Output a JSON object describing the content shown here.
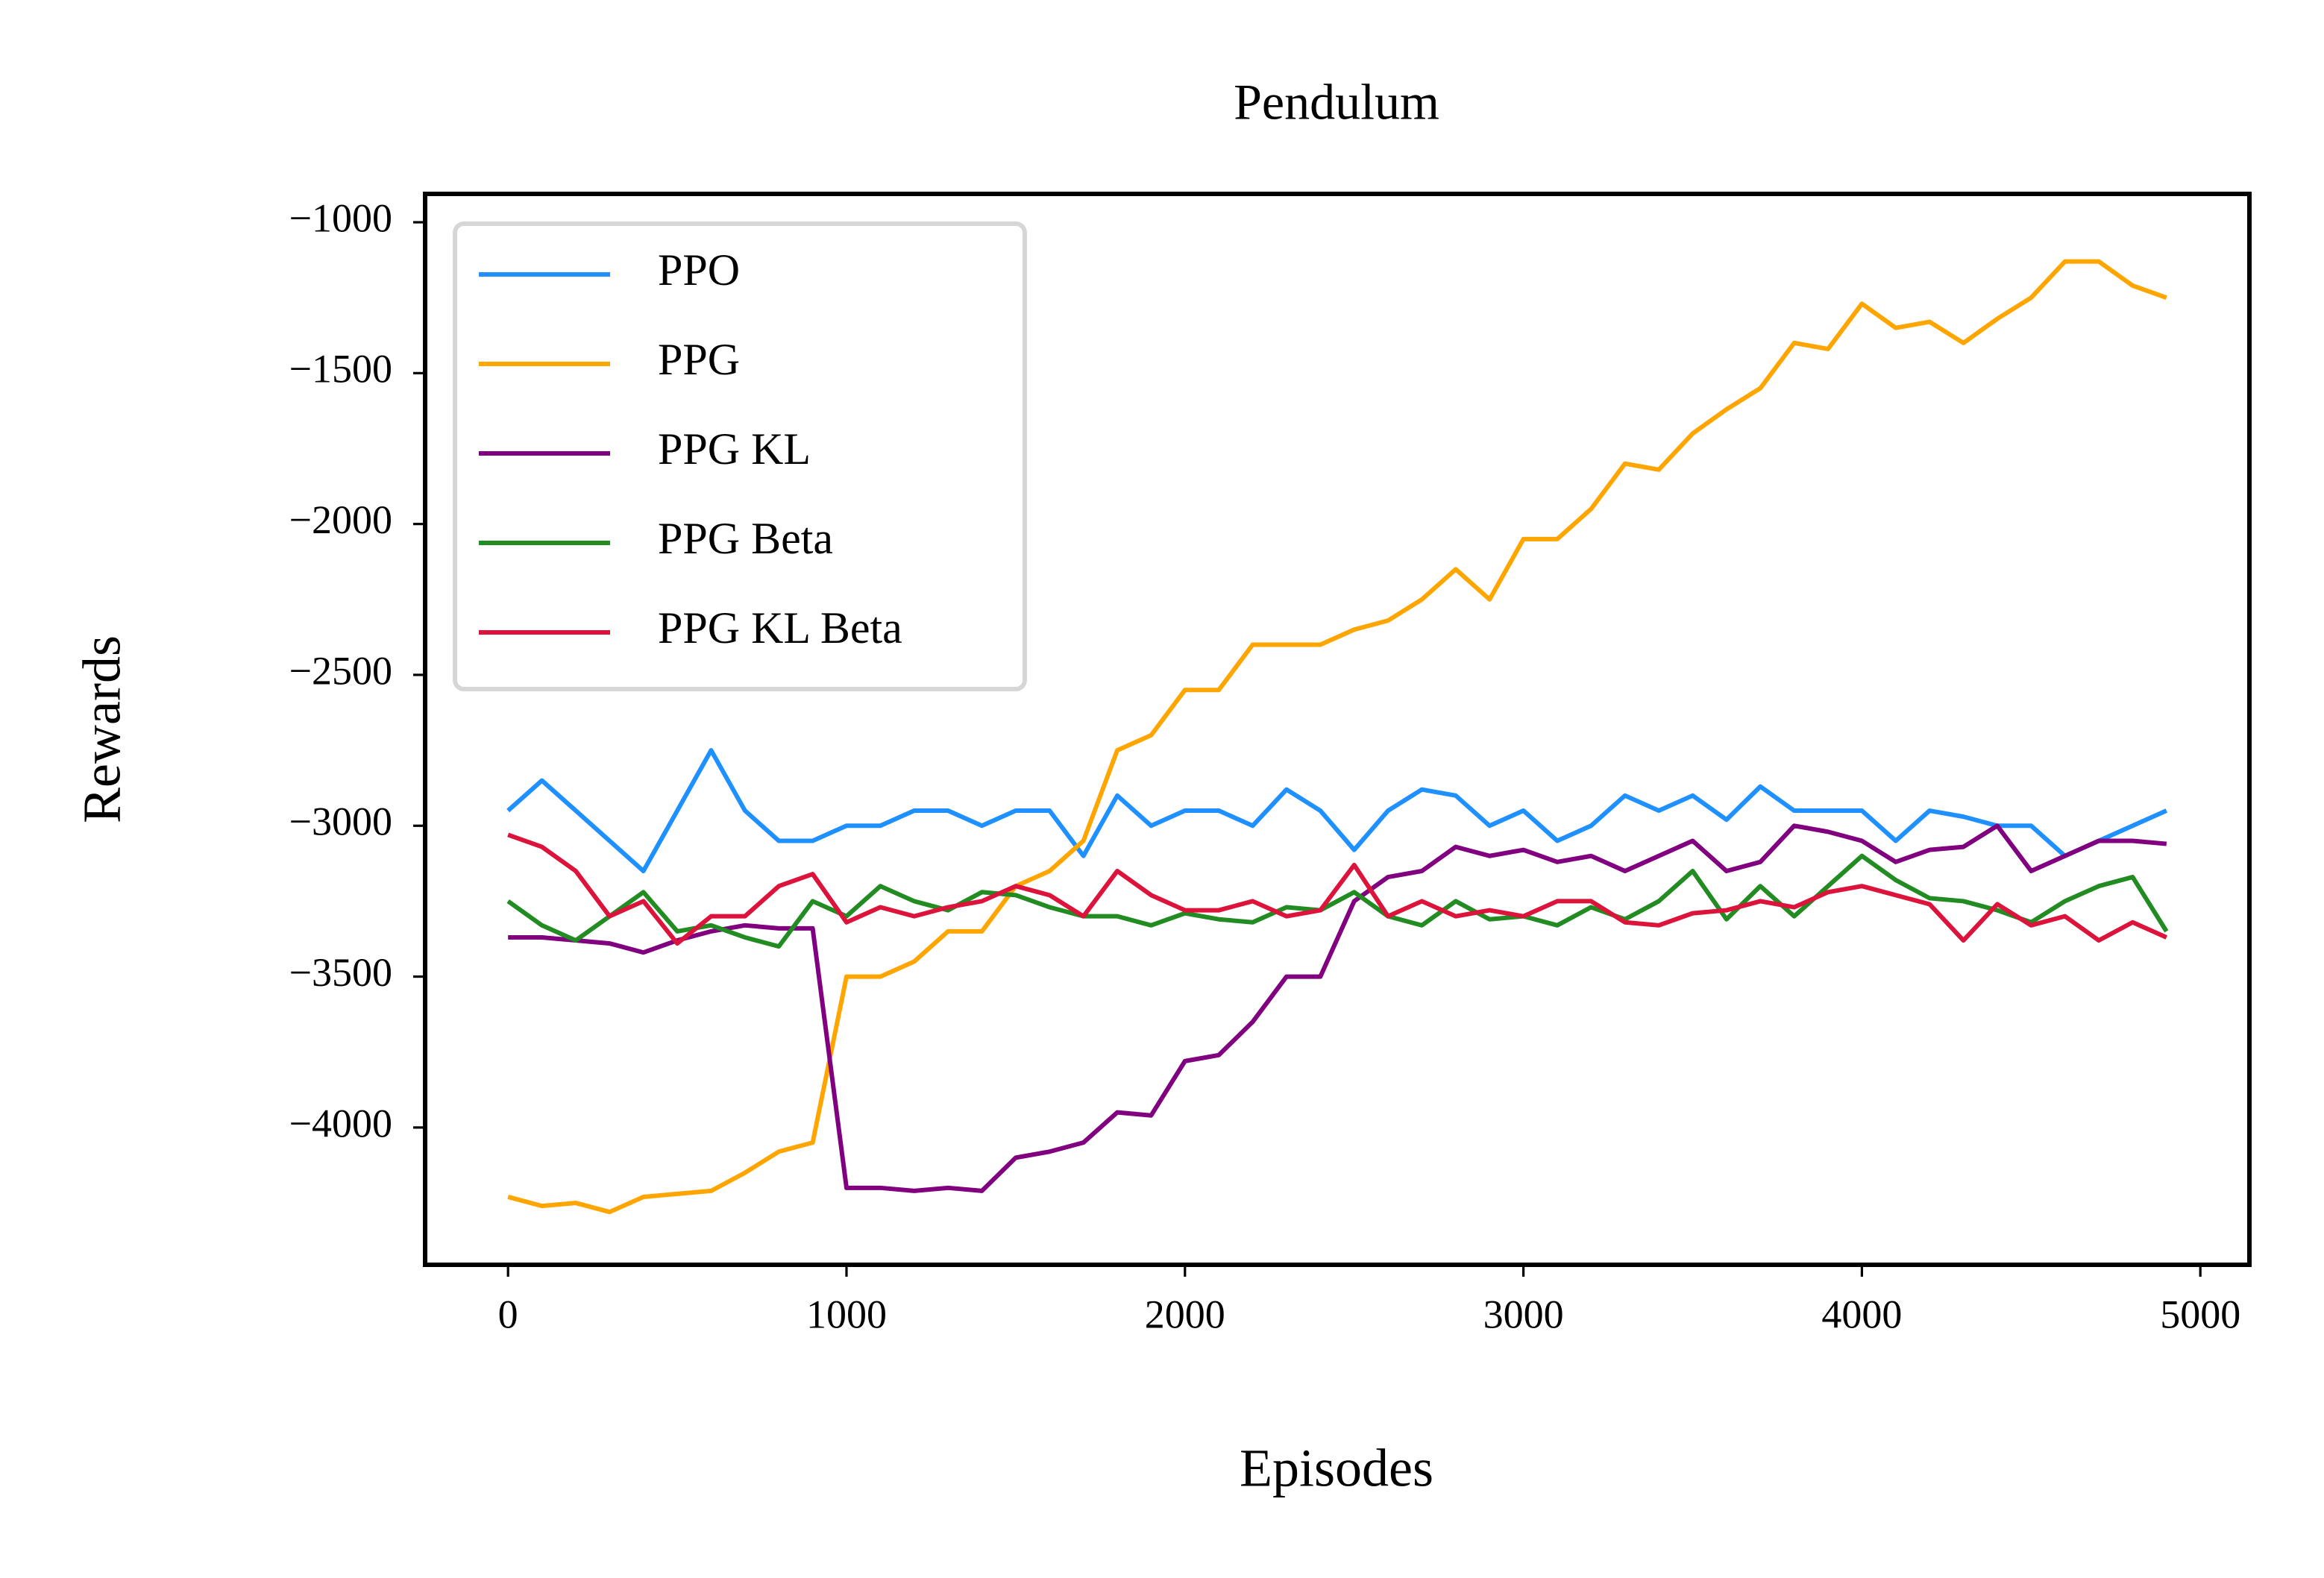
{
  "chart_data": {
    "type": "line",
    "title": "Pendulum",
    "x_label": "Episodes",
    "y_label": "Rewards",
    "x": [
      0,
      100,
      200,
      300,
      400,
      500,
      600,
      700,
      800,
      900,
      1000,
      1100,
      1200,
      1300,
      1400,
      1500,
      1600,
      1700,
      1800,
      1900,
      2000,
      2100,
      2200,
      2300,
      2400,
      2500,
      2600,
      2700,
      2800,
      2900,
      3000,
      3100,
      3200,
      3300,
      3400,
      3500,
      3600,
      3700,
      3800,
      3900,
      4000,
      4100,
      4200,
      4300,
      4400,
      4500,
      4600,
      4700,
      4800,
      4900
    ],
    "series": [
      {
        "name": "PPO",
        "color": "#1e90ff",
        "values": [
          -2950,
          -2850,
          -2950,
          -3050,
          -3150,
          -2950,
          -2750,
          -2950,
          -3050,
          -3050,
          -3000,
          -3000,
          -2950,
          -2950,
          -3000,
          -2950,
          -2950,
          -3100,
          -2900,
          -3000,
          -2950,
          -2950,
          -3000,
          -2880,
          -2950,
          -3080,
          -2950,
          -2880,
          -2900,
          -3000,
          -2950,
          -3050,
          -3000,
          -2900,
          -2950,
          -2900,
          -2980,
          -2870,
          -2950,
          -2950,
          -2950,
          -3050,
          -2950,
          -2970,
          -3000,
          -3000,
          -3100,
          -3050,
          -3000,
          -2950
        ]
      },
      {
        "name": "PPG",
        "color": "#ffa500",
        "values": [
          -4230,
          -4260,
          -4250,
          -4280,
          -4230,
          -4220,
          -4210,
          -4150,
          -4080,
          -4050,
          -3500,
          -3500,
          -3450,
          -3350,
          -3350,
          -3200,
          -3150,
          -3050,
          -2750,
          -2700,
          -2550,
          -2550,
          -2400,
          -2400,
          -2400,
          -2350,
          -2320,
          -2250,
          -2150,
          -2250,
          -2050,
          -2050,
          -1950,
          -1800,
          -1820,
          -1700,
          -1620,
          -1550,
          -1400,
          -1420,
          -1270,
          -1350,
          -1330,
          -1400,
          -1320,
          -1250,
          -1130,
          -1130,
          -1210,
          -1250
        ]
      },
      {
        "name": "PPG KL",
        "color": "#800080",
        "values": [
          -3370,
          -3370,
          -3380,
          -3390,
          -3420,
          -3380,
          -3350,
          -3330,
          -3340,
          -3340,
          -4200,
          -4200,
          -4210,
          -4200,
          -4210,
          -4100,
          -4080,
          -4050,
          -3950,
          -3960,
          -3780,
          -3760,
          -3650,
          -3500,
          -3500,
          -3250,
          -3170,
          -3150,
          -3070,
          -3100,
          -3080,
          -3120,
          -3100,
          -3150,
          -3100,
          -3050,
          -3150,
          -3120,
          -3000,
          -3020,
          -3050,
          -3120,
          -3080,
          -3070,
          -3000,
          -3150,
          -3100,
          -3050,
          -3050,
          -3060
        ]
      },
      {
        "name": "PPG Beta",
        "color": "#228b22",
        "values": [
          -3250,
          -3330,
          -3380,
          -3300,
          -3220,
          -3350,
          -3330,
          -3370,
          -3400,
          -3250,
          -3300,
          -3200,
          -3250,
          -3280,
          -3220,
          -3230,
          -3270,
          -3300,
          -3300,
          -3330,
          -3290,
          -3310,
          -3320,
          -3270,
          -3280,
          -3220,
          -3300,
          -3330,
          -3250,
          -3310,
          -3300,
          -3330,
          -3270,
          -3310,
          -3250,
          -3150,
          -3310,
          -3200,
          -3300,
          -3200,
          -3100,
          -3180,
          -3240,
          -3250,
          -3280,
          -3320,
          -3250,
          -3200,
          -3170,
          -3350
        ]
      },
      {
        "name": "PPG KL Beta",
        "color": "#dc143c",
        "values": [
          -3030,
          -3070,
          -3150,
          -3300,
          -3250,
          -3390,
          -3300,
          -3300,
          -3200,
          -3160,
          -3320,
          -3270,
          -3300,
          -3270,
          -3250,
          -3200,
          -3230,
          -3300,
          -3150,
          -3230,
          -3280,
          -3280,
          -3250,
          -3300,
          -3280,
          -3130,
          -3300,
          -3250,
          -3300,
          -3280,
          -3300,
          -3250,
          -3250,
          -3320,
          -3330,
          -3290,
          -3280,
          -3250,
          -3270,
          -3220,
          -3200,
          -3230,
          -3260,
          -3380,
          -3260,
          -3330,
          -3300,
          -3380,
          -3320,
          -3370
        ]
      }
    ],
    "xlim": [
      -245,
      5145
    ],
    "xticks": [
      0,
      1000,
      2000,
      3000,
      4000,
      5000
    ],
    "ylim": [
      -4455,
      -906
    ],
    "yticks": [
      {
        "value": -4000,
        "label": "−4000"
      },
      {
        "value": -3500,
        "label": "−3500"
      },
      {
        "value": -3000,
        "label": "−3000"
      },
      {
        "value": -2500,
        "label": "−2500"
      },
      {
        "value": -2000,
        "label": "−2000"
      },
      {
        "value": -1500,
        "label": "−1500"
      },
      {
        "value": -1000,
        "label": "−1000"
      }
    ],
    "legend": "upper left"
  }
}
